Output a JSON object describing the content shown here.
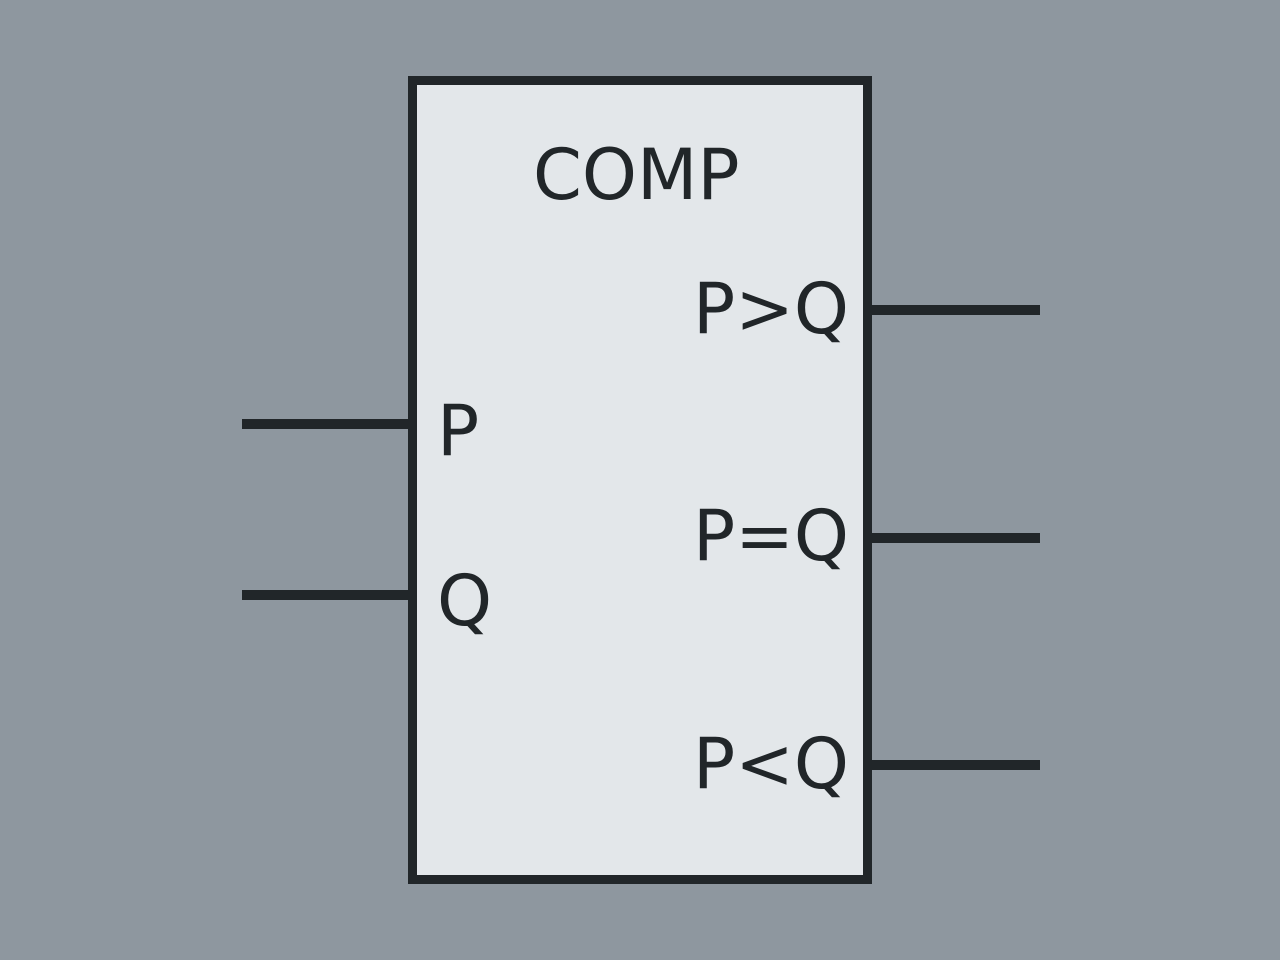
{
  "component": {
    "title": "COMP",
    "inputs": [
      {
        "label": "P"
      },
      {
        "label": "Q"
      }
    ],
    "outputs": [
      {
        "label": "P>Q"
      },
      {
        "label": "P=Q"
      },
      {
        "label": "P<Q"
      }
    ]
  },
  "colors": {
    "background": "#8e979f",
    "block_fill": "#e3e7ea",
    "stroke": "#212629"
  }
}
